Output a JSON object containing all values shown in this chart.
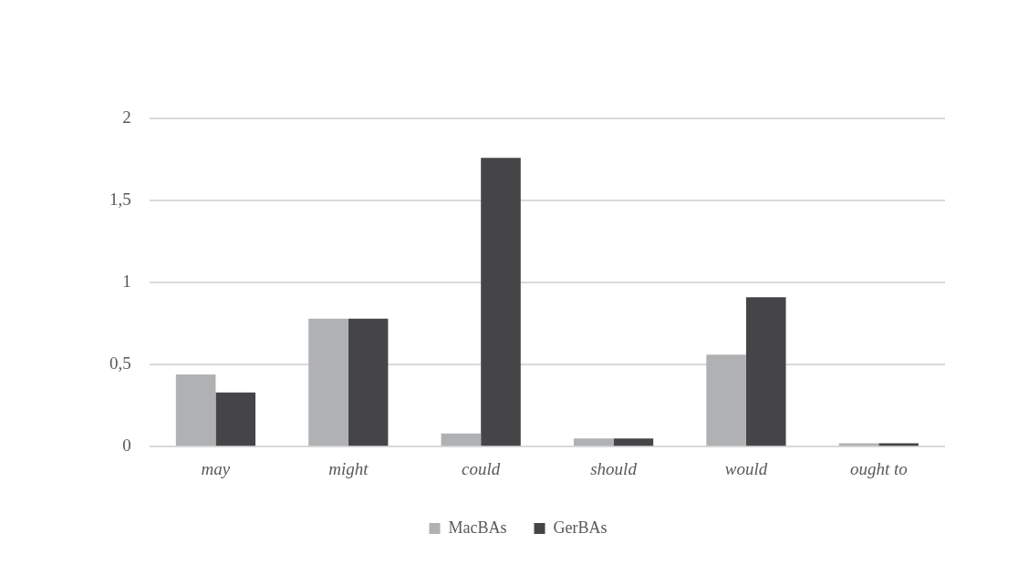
{
  "chart_data": {
    "type": "bar",
    "categories": [
      "may",
      "might",
      "could",
      "should",
      "would",
      "ought to"
    ],
    "series": [
      {
        "name": "MacBAs",
        "color": "#b0b1b3",
        "values": [
          0.44,
          0.78,
          0.08,
          0.05,
          0.56,
          0.02
        ]
      },
      {
        "name": "GerBAs",
        "color": "#454547",
        "values": [
          0.33,
          0.78,
          1.76,
          0.05,
          0.91,
          0.02
        ]
      }
    ],
    "ylim": [
      0,
      2
    ],
    "yticks": [
      0,
      {
        "value": 0.5,
        "label": "0,5"
      },
      1,
      {
        "value": 1.5,
        "label": "1,5"
      },
      2
    ],
    "grid": "y",
    "legend": "bottom"
  }
}
